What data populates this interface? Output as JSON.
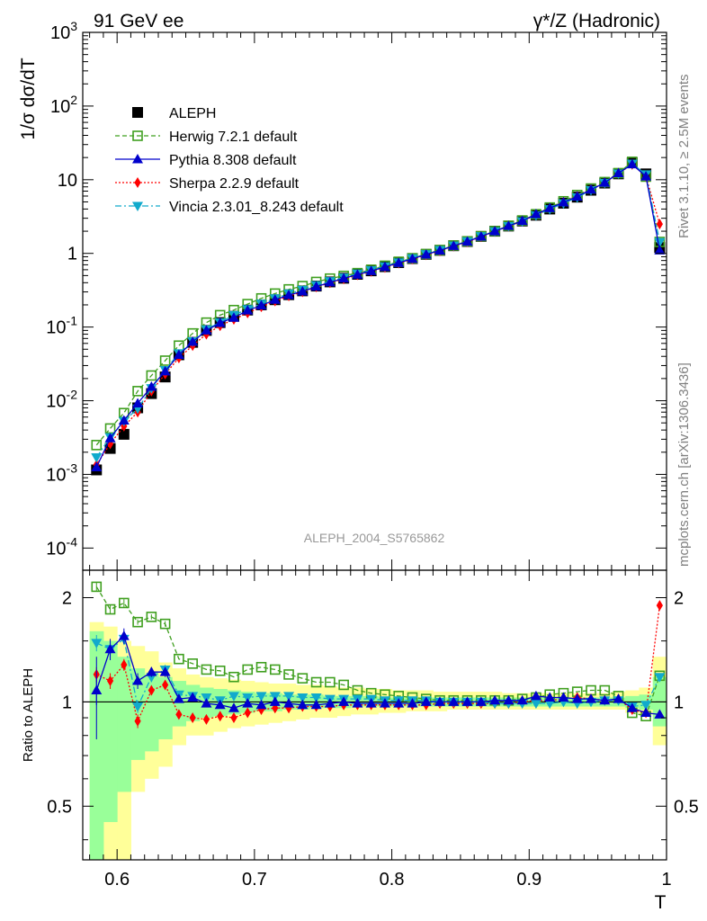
{
  "header": {
    "left": "91 GeV ee",
    "right": "γ*/Z (Hadronic)"
  },
  "side_labels": {
    "rivet": "Rivet 3.1.10, ≥ 2.5M events",
    "mcplots": "mcplots.cern.ch [arXiv:1306.3436]"
  },
  "analysis_label": "ALEPH_2004_S5765862",
  "colors": {
    "herwig": "#3f9f1f",
    "pythia": "#0000cc",
    "sherpa": "#ff0000",
    "vincia": "#11aacc",
    "band_yellow": "#ffff99",
    "band_green": "#99ff99"
  },
  "chart_data": [
    {
      "type": "scatter",
      "name": "main",
      "ylabel": "1/σ  dσ/dT",
      "yscale": "log",
      "ylim": [
        5e-05,
        1000
      ],
      "xlim": [
        0.575,
        1.0
      ],
      "y_tick_labels": [
        "10^-4",
        "10^-3",
        "10^-2",
        "10^-1",
        "1",
        "10",
        "10^2",
        "10^3"
      ],
      "legend_position": "top-left",
      "x": [
        0.585,
        0.595,
        0.605,
        0.615,
        0.625,
        0.635,
        0.645,
        0.655,
        0.665,
        0.675,
        0.685,
        0.695,
        0.705,
        0.715,
        0.725,
        0.735,
        0.745,
        0.755,
        0.765,
        0.775,
        0.785,
        0.795,
        0.805,
        0.815,
        0.825,
        0.835,
        0.845,
        0.855,
        0.865,
        0.875,
        0.885,
        0.895,
        0.905,
        0.915,
        0.925,
        0.935,
        0.945,
        0.955,
        0.965,
        0.975,
        0.985,
        0.995
      ],
      "series": [
        {
          "name": "ALEPH",
          "key": "aleph",
          "values": [
            0.00115,
            0.00225,
            0.0035,
            0.008,
            0.0125,
            0.021,
            0.042,
            0.062,
            0.09,
            0.115,
            0.14,
            0.17,
            0.2,
            0.235,
            0.275,
            0.31,
            0.36,
            0.41,
            0.46,
            0.52,
            0.58,
            0.66,
            0.75,
            0.85,
            0.97,
            1.1,
            1.27,
            1.45,
            1.7,
            2.0,
            2.35,
            2.75,
            3.3,
            4.0,
            4.8,
            5.8,
            7.2,
            9.0,
            12.0,
            17.0,
            12.0,
            1.2
          ]
        },
        {
          "name": "Herwig 7.2.1 default",
          "key": "herwig",
          "values": [
            0.0025,
            0.0042,
            0.0068,
            0.0135,
            0.022,
            0.035,
            0.056,
            0.082,
            0.115,
            0.145,
            0.17,
            0.205,
            0.245,
            0.285,
            0.325,
            0.36,
            0.41,
            0.455,
            0.495,
            0.54,
            0.6,
            0.68,
            0.77,
            0.86,
            0.98,
            1.11,
            1.28,
            1.46,
            1.71,
            2.01,
            2.37,
            2.8,
            3.4,
            4.2,
            5.1,
            6.2,
            7.6,
            9.3,
            12.3,
            17.5,
            11.0,
            1.43
          ]
        },
        {
          "name": "Pythia 8.308 default",
          "key": "pythia",
          "values": [
            0.00125,
            0.0031,
            0.0054,
            0.0092,
            0.0155,
            0.025,
            0.042,
            0.063,
            0.09,
            0.114,
            0.134,
            0.168,
            0.196,
            0.235,
            0.272,
            0.305,
            0.354,
            0.405,
            0.458,
            0.515,
            0.575,
            0.655,
            0.745,
            0.845,
            0.966,
            1.095,
            1.265,
            1.445,
            1.695,
            2.0,
            2.36,
            2.76,
            3.4,
            4.12,
            4.92,
            5.92,
            7.35,
            9.1,
            12.3,
            16.2,
            11.1,
            1.1
          ]
        },
        {
          "name": "Sherpa 2.2.9 default",
          "key": "sherpa",
          "values": [
            0.00135,
            0.0026,
            0.0045,
            0.007,
            0.0135,
            0.023,
            0.038,
            0.056,
            0.08,
            0.104,
            0.127,
            0.155,
            0.188,
            0.225,
            0.265,
            0.3,
            0.35,
            0.4,
            0.45,
            0.51,
            0.57,
            0.645,
            0.735,
            0.835,
            0.955,
            1.085,
            1.255,
            1.43,
            1.68,
            1.985,
            2.33,
            2.74,
            3.33,
            4.05,
            4.92,
            5.95,
            7.35,
            9.05,
            12.2,
            16.1,
            11.2,
            2.5
          ]
        },
        {
          "name": "Vincia 2.3.01_8.243 default",
          "key": "vincia",
          "values": [
            0.0017,
            0.0032,
            0.0053,
            0.0078,
            0.0148,
            0.026,
            0.044,
            0.064,
            0.093,
            0.116,
            0.145,
            0.175,
            0.208,
            0.245,
            0.285,
            0.32,
            0.37,
            0.42,
            0.47,
            0.53,
            0.59,
            0.665,
            0.755,
            0.855,
            0.975,
            1.105,
            1.275,
            1.455,
            1.71,
            1.99,
            2.34,
            2.72,
            3.28,
            3.98,
            4.78,
            5.75,
            7.2,
            9.05,
            12.1,
            16.5,
            11.8,
            1.42
          ]
        }
      ]
    },
    {
      "type": "scatter",
      "name": "ratio",
      "ylabel": "Ratio to ALEPH",
      "xlabel": "T",
      "yscale": "log",
      "ylim": [
        0.35,
        2.4
      ],
      "xlim": [
        0.575,
        1.0
      ],
      "y_ticks": [
        0.5,
        1,
        2
      ],
      "y_tick_labels": [
        "0.5",
        "1",
        "2"
      ],
      "x_ticks": [
        0.6,
        0.7,
        0.8,
        0.9,
        1.0
      ],
      "x_tick_labels": [
        "0.6",
        "0.7",
        "0.8",
        "0.9",
        "1"
      ],
      "x": [
        0.585,
        0.595,
        0.605,
        0.615,
        0.625,
        0.635,
        0.645,
        0.655,
        0.665,
        0.675,
        0.685,
        0.695,
        0.705,
        0.715,
        0.725,
        0.735,
        0.745,
        0.755,
        0.765,
        0.775,
        0.785,
        0.795,
        0.805,
        0.815,
        0.825,
        0.835,
        0.845,
        0.855,
        0.865,
        0.875,
        0.885,
        0.895,
        0.905,
        0.915,
        0.925,
        0.935,
        0.945,
        0.955,
        0.965,
        0.975,
        0.985,
        0.995
      ],
      "band_outer": [
        [
          0.3,
          1.7
        ],
        [
          0.3,
          1.65
        ],
        [
          0.35,
          1.5
        ],
        [
          0.55,
          1.45
        ],
        [
          0.6,
          1.4
        ],
        [
          0.65,
          1.3
        ],
        [
          0.75,
          1.25
        ],
        [
          0.8,
          1.2
        ],
        [
          0.8,
          1.18
        ],
        [
          0.82,
          1.17
        ],
        [
          0.84,
          1.16
        ],
        [
          0.85,
          1.15
        ],
        [
          0.86,
          1.14
        ],
        [
          0.87,
          1.13
        ],
        [
          0.88,
          1.13
        ],
        [
          0.89,
          1.12
        ],
        [
          0.9,
          1.12
        ],
        [
          0.9,
          1.11
        ],
        [
          0.91,
          1.1
        ],
        [
          0.92,
          1.1
        ],
        [
          0.92,
          1.09
        ],
        [
          0.93,
          1.09
        ],
        [
          0.93,
          1.08
        ],
        [
          0.94,
          1.08
        ],
        [
          0.94,
          1.08
        ],
        [
          0.94,
          1.07
        ],
        [
          0.95,
          1.07
        ],
        [
          0.95,
          1.07
        ],
        [
          0.95,
          1.07
        ],
        [
          0.95,
          1.07
        ],
        [
          0.95,
          1.06
        ],
        [
          0.95,
          1.06
        ],
        [
          0.95,
          1.06
        ],
        [
          0.95,
          1.06
        ],
        [
          0.95,
          1.06
        ],
        [
          0.95,
          1.06
        ],
        [
          0.95,
          1.06
        ],
        [
          0.95,
          1.06
        ],
        [
          0.95,
          1.07
        ],
        [
          0.93,
          1.08
        ],
        [
          0.92,
          1.1
        ],
        [
          0.75,
          1.35
        ]
      ],
      "band_inner": [
        [
          0.35,
          1.6
        ],
        [
          0.45,
          1.5
        ],
        [
          0.55,
          1.35
        ],
        [
          0.68,
          1.25
        ],
        [
          0.72,
          1.2
        ],
        [
          0.78,
          1.18
        ],
        [
          0.85,
          1.15
        ],
        [
          0.88,
          1.12
        ],
        [
          0.9,
          1.1
        ],
        [
          0.91,
          1.09
        ],
        [
          0.92,
          1.08
        ],
        [
          0.93,
          1.07
        ],
        [
          0.94,
          1.06
        ],
        [
          0.94,
          1.06
        ],
        [
          0.95,
          1.05
        ],
        [
          0.95,
          1.05
        ],
        [
          0.96,
          1.05
        ],
        [
          0.96,
          1.04
        ],
        [
          0.96,
          1.04
        ],
        [
          0.97,
          1.04
        ],
        [
          0.97,
          1.04
        ],
        [
          0.97,
          1.03
        ],
        [
          0.97,
          1.03
        ],
        [
          0.97,
          1.03
        ],
        [
          0.97,
          1.03
        ],
        [
          0.97,
          1.03
        ],
        [
          0.97,
          1.03
        ],
        [
          0.97,
          1.03
        ],
        [
          0.97,
          1.03
        ],
        [
          0.97,
          1.03
        ],
        [
          0.97,
          1.03
        ],
        [
          0.97,
          1.03
        ],
        [
          0.97,
          1.03
        ],
        [
          0.97,
          1.03
        ],
        [
          0.97,
          1.03
        ],
        [
          0.97,
          1.03
        ],
        [
          0.97,
          1.03
        ],
        [
          0.97,
          1.03
        ],
        [
          0.97,
          1.03
        ],
        [
          0.96,
          1.04
        ],
        [
          0.95,
          1.05
        ],
        [
          0.85,
          1.18
        ]
      ],
      "series": [
        {
          "name": "Herwig 7.2.1 default",
          "key": "herwig",
          "values": [
            2.15,
            1.85,
            1.93,
            1.7,
            1.76,
            1.68,
            1.33,
            1.29,
            1.24,
            1.23,
            1.18,
            1.24,
            1.26,
            1.24,
            1.2,
            1.17,
            1.14,
            1.14,
            1.12,
            1.08,
            1.06,
            1.05,
            1.04,
            1.03,
            1.02,
            1.01,
            1.01,
            1.01,
            1.01,
            1.01,
            1.01,
            1.02,
            1.03,
            1.05,
            1.06,
            1.07,
            1.08,
            1.08,
            1.04,
            0.93,
            0.91,
            1.19
          ],
          "err": [
            0.06,
            0.05,
            0.05,
            0.03,
            0.03,
            0.03,
            0,
            0,
            0,
            0,
            0,
            0,
            0,
            0,
            0,
            0,
            0,
            0,
            0,
            0,
            0,
            0,
            0,
            0,
            0,
            0,
            0,
            0,
            0,
            0,
            0,
            0,
            0,
            0,
            0,
            0,
            0,
            0,
            0,
            0,
            0,
            0
          ]
        },
        {
          "name": "Pythia 8.308 default",
          "key": "pythia",
          "values": [
            1.08,
            1.42,
            1.55,
            1.15,
            1.22,
            1.22,
            1.02,
            1.03,
            0.99,
            0.98,
            0.96,
            0.99,
            0.98,
            1.0,
            0.99,
            0.98,
            0.98,
            0.99,
            1.0,
            0.99,
            0.99,
            0.99,
            0.99,
            0.99,
            1.0,
            1.0,
            1.0,
            1.0,
            1.0,
            1.01,
            1.01,
            1.01,
            1.04,
            1.03,
            1.03,
            1.02,
            1.02,
            1.01,
            1.02,
            0.96,
            0.93,
            0.92
          ],
          "err": [
            0.1,
            0.1,
            0.08,
            0.06,
            0.04,
            0.04,
            0,
            0,
            0,
            0,
            0,
            0,
            0,
            0,
            0,
            0,
            0,
            0,
            0,
            0,
            0,
            0,
            0,
            0,
            0,
            0,
            0,
            0,
            0,
            0,
            0,
            0,
            0,
            0,
            0,
            0,
            0,
            0,
            0,
            0,
            0,
            0
          ]
        },
        {
          "name": "Sherpa 2.2.9 default",
          "key": "sherpa",
          "values": [
            1.2,
            1.15,
            1.28,
            0.88,
            1.08,
            1.12,
            0.92,
            0.9,
            0.89,
            0.91,
            0.9,
            0.93,
            0.95,
            0.96,
            0.96,
            0.97,
            0.97,
            0.97,
            0.98,
            0.98,
            0.98,
            0.98,
            0.98,
            0.98,
            0.98,
            0.99,
            0.99,
            0.99,
            0.99,
            0.99,
            0.99,
            1.0,
            1.01,
            1.01,
            1.02,
            1.03,
            1.02,
            1.01,
            1.02,
            0.95,
            0.93,
            1.9
          ],
          "err": [
            0.06,
            0.06,
            0.05,
            0.04,
            0.03,
            0.03,
            0,
            0,
            0,
            0,
            0,
            0,
            0,
            0,
            0,
            0,
            0,
            0,
            0,
            0,
            0,
            0,
            0,
            0,
            0,
            0,
            0,
            0,
            0,
            0,
            0,
            0,
            0,
            0,
            0,
            0,
            0,
            0,
            0,
            0,
            0,
            0
          ]
        },
        {
          "name": "Vincia 2.3.01_8.243 default",
          "key": "vincia",
          "values": [
            1.48,
            1.42,
            1.52,
            0.97,
            1.18,
            1.24,
            1.05,
            1.04,
            1.03,
            1.01,
            1.04,
            1.03,
            1.04,
            1.04,
            1.04,
            1.03,
            1.03,
            1.02,
            1.02,
            1.02,
            1.02,
            1.01,
            1.01,
            1.01,
            1.01,
            1.0,
            1.0,
            1.0,
            1.0,
            0.99,
            0.99,
            0.99,
            0.99,
            0.99,
            1.0,
            0.99,
            1.0,
            1.01,
            1.01,
            0.97,
            0.98,
            1.18
          ],
          "err": [
            0.08,
            0.07,
            0.06,
            0.04,
            0.04,
            0.04,
            0,
            0,
            0,
            0,
            0,
            0,
            0,
            0,
            0,
            0,
            0,
            0,
            0,
            0,
            0,
            0,
            0,
            0,
            0,
            0,
            0,
            0,
            0,
            0,
            0,
            0,
            0,
            0,
            0,
            0,
            0,
            0,
            0,
            0,
            0,
            0
          ]
        }
      ]
    }
  ]
}
